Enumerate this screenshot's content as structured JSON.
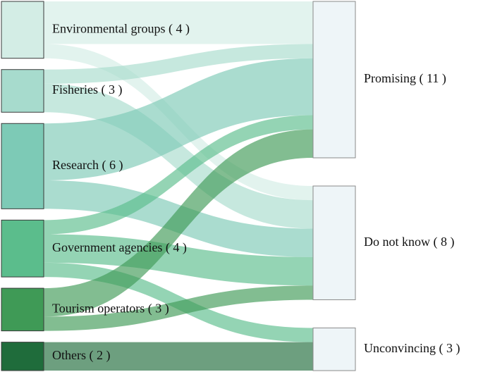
{
  "chart_data": {
    "type": "sankey",
    "nodes": [
      {
        "label": "Environmental groups ( 4 )",
        "color": "#d3ede5",
        "side": "left"
      },
      {
        "label": "Fisheries ( 3 )",
        "color": "#a7dbcd",
        "side": "left"
      },
      {
        "label": "Research ( 6 )",
        "color": "#7dcab6",
        "side": "left"
      },
      {
        "label": "Government agencies ( 4 )",
        "color": "#5bbd8c",
        "side": "left"
      },
      {
        "label": "Tourism operators ( 3 )",
        "color": "#3f9a56",
        "side": "left"
      },
      {
        "label": "Others ( 2 )",
        "color": "#1f6c3b",
        "side": "left"
      },
      {
        "label": "Promising ( 11 )",
        "color": "#eef5f8",
        "side": "right"
      },
      {
        "label": "Do not know ( 8 )",
        "color": "#eef5f8",
        "side": "right"
      },
      {
        "label": "Unconvincing ( 3 )",
        "color": "#eef5f8",
        "side": "right"
      }
    ],
    "links": [
      {
        "source": 0,
        "target": 6,
        "value": 3
      },
      {
        "source": 0,
        "target": 7,
        "value": 1
      },
      {
        "source": 1,
        "target": 6,
        "value": 1
      },
      {
        "source": 1,
        "target": 7,
        "value": 2
      },
      {
        "source": 2,
        "target": 6,
        "value": 4
      },
      {
        "source": 2,
        "target": 7,
        "value": 2
      },
      {
        "source": 3,
        "target": 6,
        "value": 1
      },
      {
        "source": 3,
        "target": 7,
        "value": 2
      },
      {
        "source": 3,
        "target": 8,
        "value": 1
      },
      {
        "source": 4,
        "target": 6,
        "value": 2
      },
      {
        "source": 4,
        "target": 7,
        "value": 1
      },
      {
        "source": 5,
        "target": 8,
        "value": 2
      }
    ]
  }
}
